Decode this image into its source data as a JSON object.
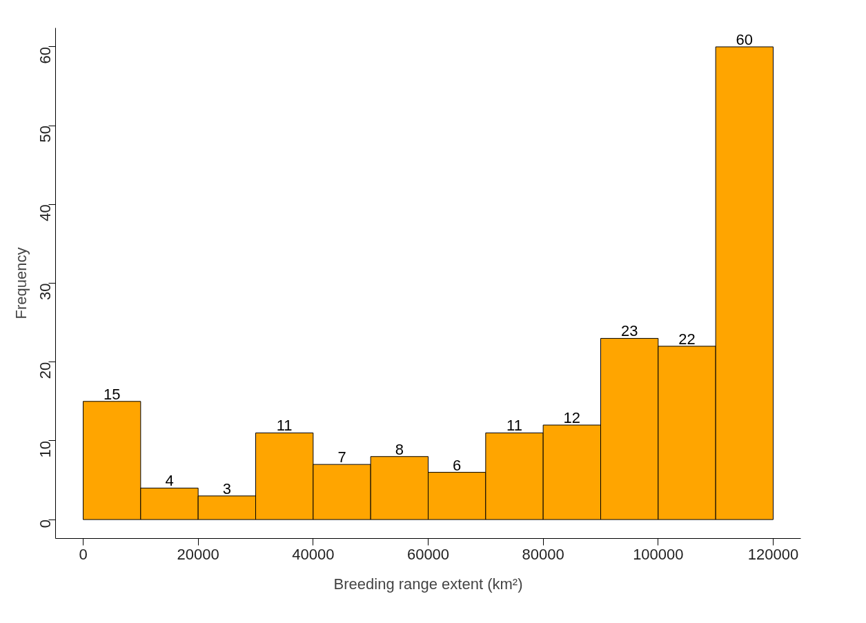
{
  "chart_data": {
    "type": "histogram",
    "xlabel": "Breeding range extent (km²)",
    "ylabel": "Frequency",
    "bins": [
      0,
      10000,
      20000,
      30000,
      40000,
      50000,
      60000,
      70000,
      80000,
      90000,
      100000,
      110000,
      120000
    ],
    "values": [
      15,
      4,
      3,
      11,
      7,
      8,
      6,
      11,
      12,
      23,
      22,
      60
    ],
    "color": "#ffa500",
    "data_labels": true,
    "xlim": [
      -4800,
      124800
    ],
    "ylim": [
      -2.4,
      62.4
    ],
    "xticks": [
      0,
      20000,
      40000,
      60000,
      80000,
      100000,
      120000
    ],
    "yticks": [
      0,
      10,
      20,
      30,
      40,
      50,
      60
    ],
    "grid": false
  }
}
